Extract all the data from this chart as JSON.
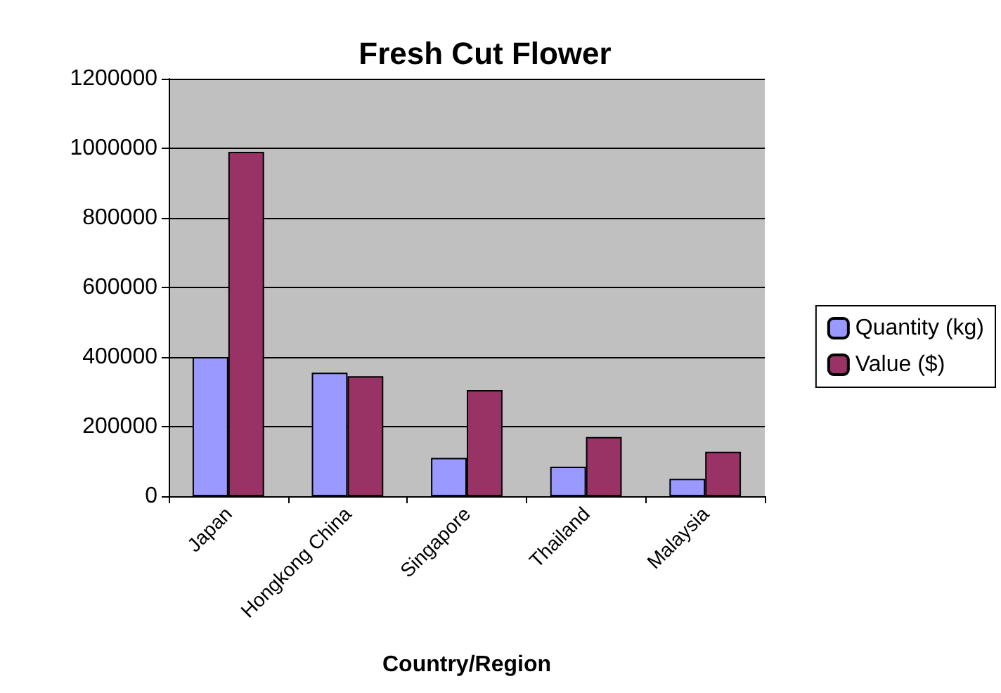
{
  "chart_data": {
    "type": "bar",
    "title": "Fresh Cut Flower",
    "xlabel": "Country/Region",
    "categories": [
      "Japan",
      "Hongkong China",
      "Singapore",
      "Thailand",
      "Malaysia"
    ],
    "series": [
      {
        "name": "Quantity (kg)",
        "color": "#9999ff",
        "values": [
          400000,
          355000,
          110000,
          85000,
          50000
        ]
      },
      {
        "name": "Value ($)",
        "color": "#993366",
        "values": [
          990000,
          345000,
          305000,
          170000,
          128000
        ]
      }
    ],
    "ylim": [
      0,
      1200000
    ],
    "yticks": [
      0,
      200000,
      400000,
      600000,
      800000,
      1000000,
      1200000
    ],
    "grid": "y",
    "legend": "right"
  }
}
